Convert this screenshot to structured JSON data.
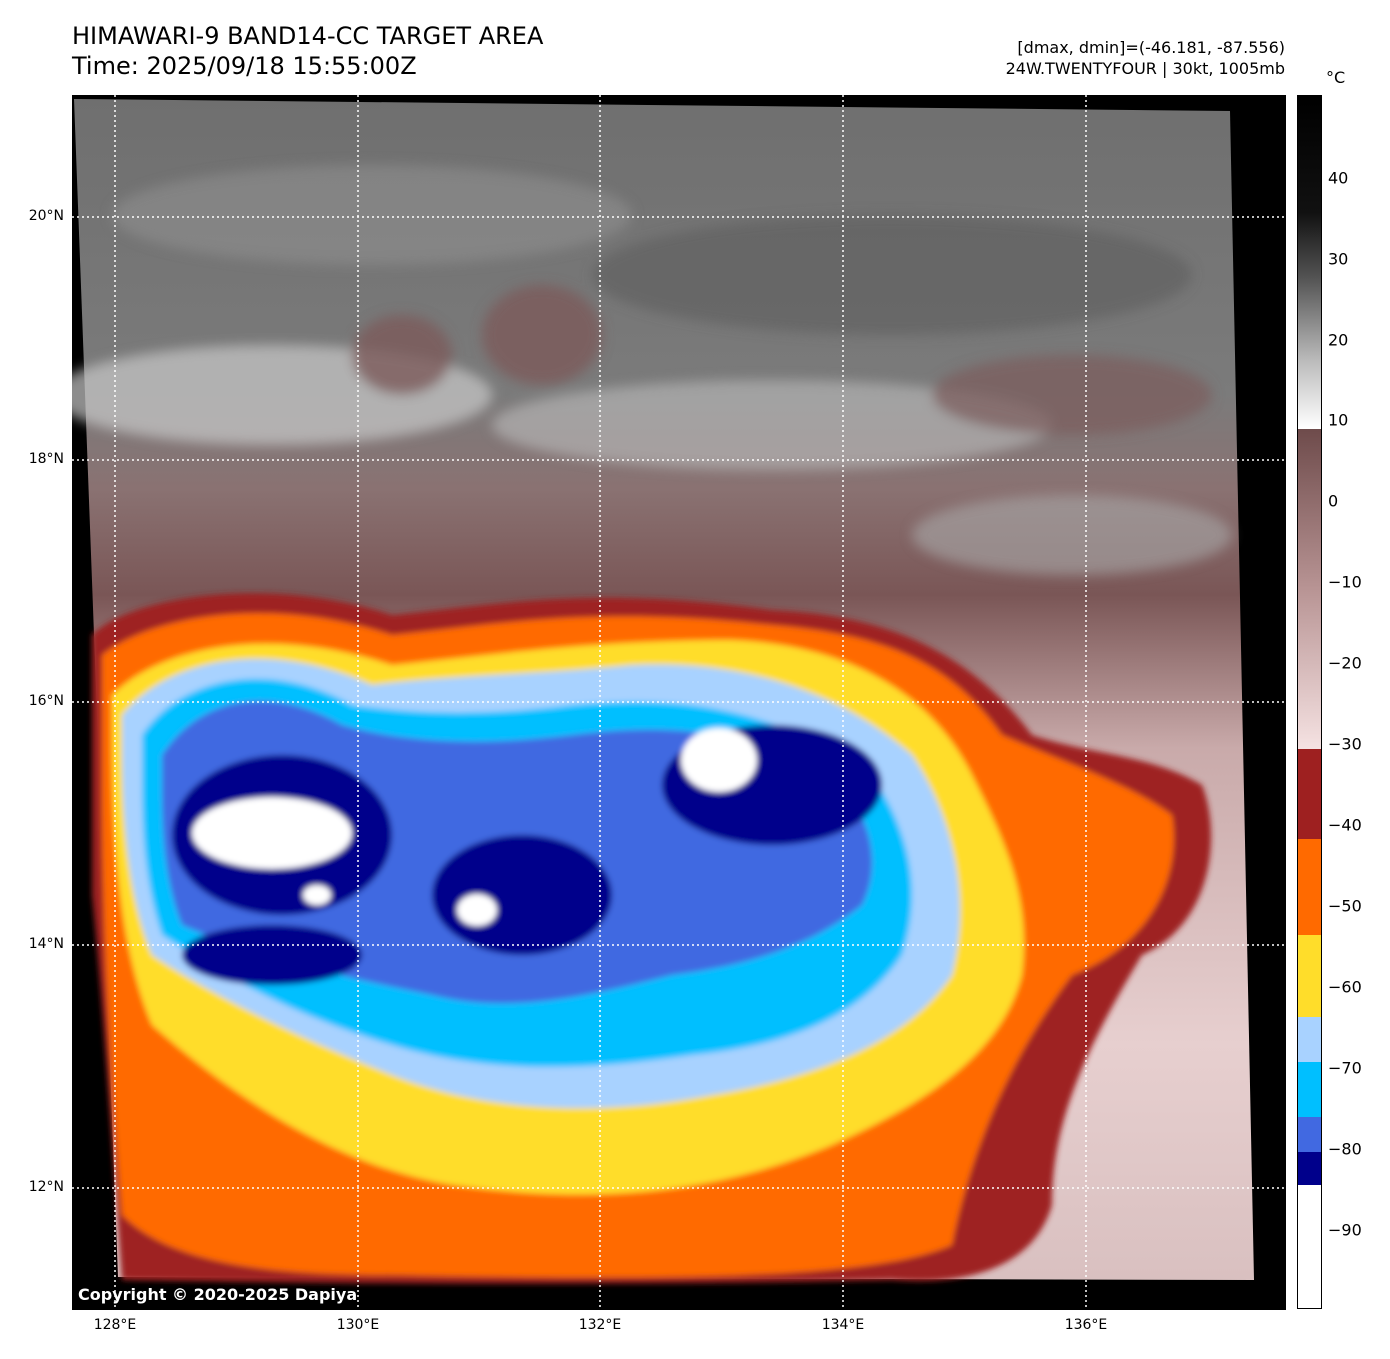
{
  "header": {
    "title_line1": "HIMAWARI-9 BAND14-CC TARGET AREA",
    "title_line2": "Time: 2025/09/18 15:55:00Z",
    "info_line1": "[dmax, dmin]=(-46.181, -87.556)",
    "info_line2": "24W.TWENTYFOUR | 30kt, 1005mb"
  },
  "map": {
    "copyright": "Copyright © 2020-2025 Dapiya",
    "lat_labels": [
      "20°N",
      "18°N",
      "16°N",
      "14°N",
      "12°N"
    ],
    "lon_labels": [
      "128°E",
      "130°E",
      "132°E",
      "134°E",
      "136°E"
    ],
    "grid_style": "dotted white"
  },
  "colorbar": {
    "unit": "°C",
    "ticks": [
      "40",
      "30",
      "20",
      "10",
      "0",
      "−10",
      "−20",
      "−30",
      "−40",
      "−50",
      "−60",
      "−70",
      "−80",
      "−90"
    ],
    "colors": {
      "warm_black": "#000000",
      "warm_gray": "#6b6b6b",
      "light_gray": "#e8e8e8",
      "brown": "#6e4b4b",
      "pink": "#f0d8d8",
      "dark_red": "#9e2020",
      "orange": "#ff6a00",
      "yellow": "#ffdd2a",
      "light_blue": "#a8d2ff",
      "cyan": "#00bfff",
      "royal_blue": "#4169e1",
      "navy": "#00008b",
      "white": "#ffffff"
    }
  }
}
